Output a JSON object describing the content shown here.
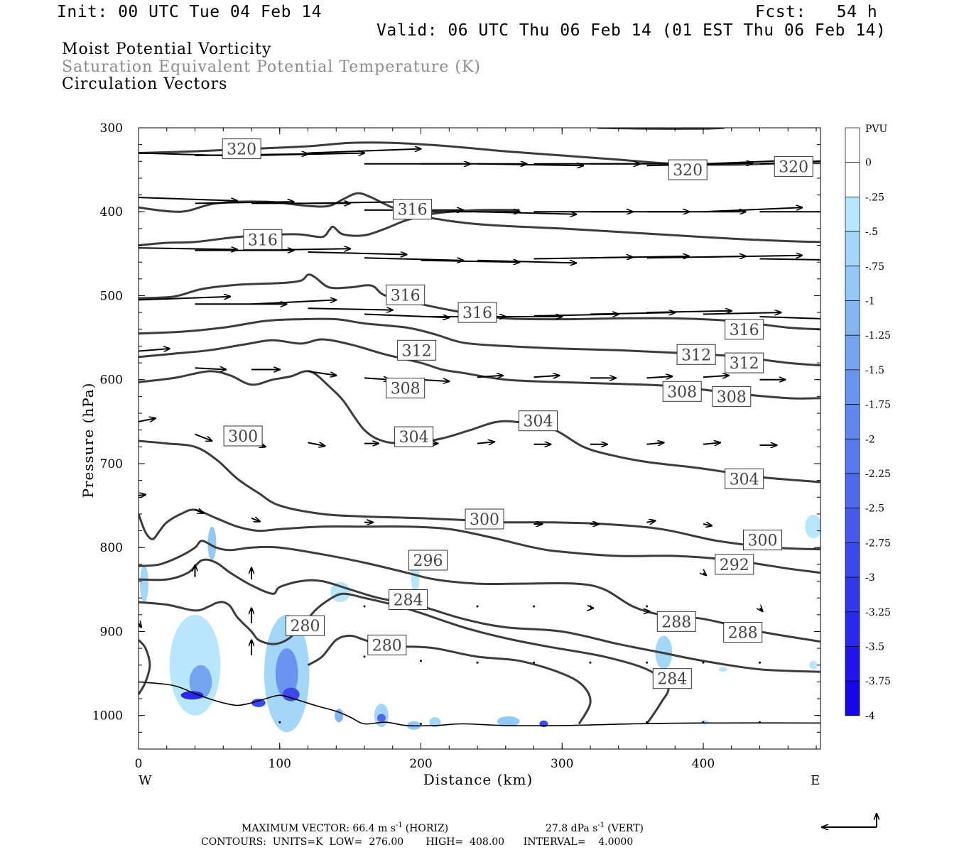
{
  "header": {
    "init": "Init: 00 UTC Tue 04 Feb 14",
    "fcst": "Fcst:   54 h",
    "valid": "Valid: 06 UTC Thu 06 Feb 14 (01 EST Thu 06 Feb 14)",
    "title1": "Moist Potential Vorticity",
    "title2": "Saturation Equivalent Potential Temperature (K)",
    "title3": "Circulation Vectors"
  },
  "colors": {
    "contour": "#3c3c3c",
    "vector": "#000000",
    "title2": "#8c8c8c"
  },
  "chart_data": {
    "type": "cross-section",
    "xlabel": "Distance (km)",
    "ylabel": "Pressure (hPa)",
    "xlim": [
      0,
      483
    ],
    "ylim": [
      1040,
      300
    ],
    "x_ticks": [
      0,
      100,
      200,
      300,
      400
    ],
    "y_ticks": [
      300,
      400,
      500,
      600,
      700,
      800,
      900,
      1000
    ],
    "x_end_labels": {
      "left": "W",
      "right": "E"
    },
    "colorbar": {
      "label": "PVU",
      "ticks": [
        "0",
        "-.25",
        "-.5",
        "-.75",
        "-1",
        "-1.25",
        "-1.5",
        "-1.75",
        "-2",
        "-2.25",
        "-2.5",
        "-2.75",
        "-3",
        "-3.25",
        "-3.5",
        "-3.75",
        "-4"
      ],
      "levels": [
        0,
        -0.25,
        -0.5,
        -0.75,
        -1,
        -1.25,
        -1.5,
        -1.75,
        -2,
        -2.25,
        -2.5,
        -2.75,
        -3,
        -3.25,
        -3.5,
        -3.75,
        -4
      ],
      "colors": [
        "#ffffff",
        "#ffffff",
        "#b8e6fc",
        "#a4d7f7",
        "#93c7f4",
        "#83b5f2",
        "#75a4f0",
        "#6a94ef",
        "#6186ee",
        "#5878ee",
        "#4e69ed",
        "#4559ed",
        "#3b49ec",
        "#3338ec",
        "#2a28ec",
        "#2015eb",
        "#1607eb"
      ]
    },
    "contours": [
      {
        "level": 320,
        "points": [
          [
            0,
            330
          ],
          [
            40,
            328
          ],
          [
            80,
            325
          ],
          [
            120,
            322
          ],
          [
            150,
            318
          ],
          [
            180,
            318
          ],
          [
            220,
            322
          ],
          [
            260,
            328
          ],
          [
            300,
            333
          ],
          [
            340,
            338
          ],
          [
            380,
            343
          ],
          [
            420,
            344
          ],
          [
            460,
            342
          ],
          [
            483,
            342
          ]
        ]
      },
      {
        "level": 320,
        "points": [
          [
            325,
            300
          ],
          [
            360,
            301
          ],
          [
            400,
            301
          ],
          [
            415,
            300
          ]
        ]
      },
      {
        "level": 316,
        "points": [
          [
            0,
            395
          ],
          [
            30,
            400
          ],
          [
            55,
            390
          ],
          [
            90,
            388
          ],
          [
            120,
            393
          ],
          [
            135,
            393
          ],
          [
            145,
            385
          ],
          [
            155,
            378
          ],
          [
            165,
            383
          ],
          [
            180,
            395
          ],
          [
            200,
            405
          ],
          [
            230,
            413
          ],
          [
            260,
            417
          ],
          [
            300,
            420
          ],
          [
            340,
            424
          ],
          [
            380,
            428
          ],
          [
            420,
            432
          ],
          [
            460,
            435
          ],
          [
            483,
            436
          ]
        ]
      },
      {
        "level": 316,
        "points": [
          [
            0,
            440
          ],
          [
            20,
            437
          ],
          [
            40,
            436
          ],
          [
            70,
            430
          ],
          [
            100,
            427
          ],
          [
            115,
            427
          ],
          [
            130,
            430
          ],
          [
            135,
            422
          ],
          [
            138,
            418
          ],
          [
            145,
            427
          ],
          [
            160,
            428
          ],
          [
            175,
            420
          ],
          [
            190,
            410
          ],
          [
            210,
            402
          ],
          [
            240,
            398
          ],
          [
            270,
            398
          ]
        ]
      },
      {
        "level": 316,
        "points": [
          [
            0,
            503
          ],
          [
            25,
            501
          ],
          [
            45,
            492
          ],
          [
            70,
            487
          ],
          [
            100,
            485
          ],
          [
            115,
            482
          ],
          [
            120,
            475
          ],
          [
            125,
            478
          ],
          [
            135,
            490
          ],
          [
            150,
            490
          ],
          [
            165,
            488
          ],
          [
            175,
            500
          ],
          [
            200,
            510
          ],
          [
            230,
            520
          ],
          [
            260,
            527
          ],
          [
            300,
            528
          ],
          [
            340,
            527
          ],
          [
            380,
            527
          ],
          [
            420,
            530
          ],
          [
            460,
            538
          ],
          [
            483,
            540
          ]
        ]
      },
      {
        "level": 312,
        "points": [
          [
            0,
            545
          ],
          [
            30,
            543
          ],
          [
            60,
            538
          ],
          [
            90,
            530
          ],
          [
            115,
            528
          ],
          [
            140,
            528
          ],
          [
            160,
            533
          ],
          [
            190,
            538
          ],
          [
            210,
            546
          ],
          [
            230,
            556
          ],
          [
            260,
            560
          ],
          [
            300,
            563
          ],
          [
            340,
            565
          ],
          [
            380,
            568
          ],
          [
            420,
            572
          ],
          [
            460,
            580
          ],
          [
            483,
            583
          ]
        ]
      },
      {
        "level": 308,
        "points": [
          [
            0,
            573
          ],
          [
            25,
            569
          ],
          [
            50,
            565
          ],
          [
            75,
            558
          ],
          [
            95,
            553
          ],
          [
            115,
            557
          ],
          [
            130,
            552
          ],
          [
            150,
            558
          ],
          [
            175,
            570
          ],
          [
            200,
            580
          ],
          [
            215,
            588
          ],
          [
            230,
            592
          ],
          [
            260,
            600
          ],
          [
            300,
            603
          ],
          [
            340,
            605
          ],
          [
            380,
            608
          ],
          [
            420,
            616
          ],
          [
            460,
            622
          ],
          [
            483,
            622
          ]
        ]
      },
      {
        "level": 304,
        "points": [
          [
            0,
            603
          ],
          [
            25,
            598
          ],
          [
            50,
            590
          ],
          [
            65,
            595
          ],
          [
            80,
            606
          ],
          [
            95,
            600
          ],
          [
            108,
            596
          ],
          [
            118,
            590
          ],
          [
            125,
            593
          ],
          [
            135,
            608
          ],
          [
            145,
            625
          ],
          [
            160,
            660
          ],
          [
            175,
            674
          ],
          [
            195,
            675
          ],
          [
            215,
            670
          ],
          [
            235,
            660
          ],
          [
            255,
            650
          ],
          [
            275,
            652
          ],
          [
            295,
            660
          ],
          [
            315,
            680
          ],
          [
            335,
            690
          ],
          [
            360,
            698
          ],
          [
            400,
            706
          ],
          [
            440,
            716
          ],
          [
            483,
            722
          ]
        ]
      },
      {
        "level": 300,
        "points": [
          [
            0,
            673
          ],
          [
            20,
            676
          ],
          [
            40,
            680
          ],
          [
            55,
            695
          ],
          [
            70,
            718
          ],
          [
            85,
            735
          ],
          [
            100,
            750
          ],
          [
            130,
            760
          ],
          [
            160,
            763
          ],
          [
            200,
            765
          ],
          [
            240,
            768
          ],
          [
            260,
            770
          ],
          [
            290,
            770
          ],
          [
            330,
            772
          ],
          [
            370,
            778
          ],
          [
            410,
            792
          ],
          [
            450,
            800
          ],
          [
            483,
            802
          ]
        ]
      },
      {
        "level": 296,
        "points": [
          [
            0,
            760
          ],
          [
            5,
            782
          ],
          [
            10,
            790
          ],
          [
            15,
            780
          ],
          [
            20,
            770
          ],
          [
            30,
            760
          ],
          [
            40,
            755
          ],
          [
            55,
            765
          ],
          [
            70,
            775
          ],
          [
            85,
            780
          ],
          [
            100,
            778
          ],
          [
            130,
            775
          ],
          [
            160,
            775
          ],
          [
            190,
            775
          ],
          [
            220,
            778
          ],
          [
            250,
            788
          ],
          [
            280,
            800
          ],
          [
            300,
            805
          ],
          [
            340,
            810
          ],
          [
            380,
            810
          ],
          [
            420,
            815
          ],
          [
            460,
            825
          ],
          [
            483,
            830
          ]
        ]
      },
      {
        "level": 292,
        "points": [
          [
            0,
            822
          ],
          [
            15,
            820
          ],
          [
            30,
            810
          ],
          [
            40,
            800
          ],
          [
            45,
            792
          ],
          [
            55,
            800
          ],
          [
            65,
            803
          ],
          [
            80,
            800
          ],
          [
            100,
            800
          ],
          [
            130,
            808
          ],
          [
            160,
            818
          ],
          [
            190,
            830
          ],
          [
            210,
            838
          ],
          [
            240,
            843
          ],
          [
            270,
            843
          ],
          [
            310,
            843
          ],
          [
            330,
            850
          ],
          [
            350,
            870
          ],
          [
            370,
            880
          ],
          [
            400,
            885
          ],
          [
            440,
            900
          ],
          [
            483,
            912
          ]
        ]
      },
      {
        "level": 288,
        "points": [
          [
            0,
            838
          ],
          [
            20,
            838
          ],
          [
            35,
            830
          ],
          [
            45,
            815
          ],
          [
            55,
            818
          ],
          [
            65,
            830
          ],
          [
            80,
            845
          ],
          [
            95,
            855
          ],
          [
            100,
            847
          ],
          [
            115,
            840
          ],
          [
            130,
            840
          ],
          [
            150,
            850
          ],
          [
            170,
            860
          ],
          [
            200,
            870
          ],
          [
            230,
            885
          ],
          [
            260,
            895
          ],
          [
            300,
            900
          ],
          [
            340,
            915
          ],
          [
            370,
            925
          ],
          [
            400,
            935
          ],
          [
            440,
            945
          ],
          [
            483,
            948
          ]
        ]
      },
      {
        "level": 284,
        "points": [
          [
            0,
            865
          ],
          [
            20,
            868
          ],
          [
            40,
            875
          ],
          [
            50,
            870
          ],
          [
            55,
            866
          ],
          [
            60,
            865
          ],
          [
            65,
            870
          ],
          [
            70,
            883
          ],
          [
            80,
            900
          ],
          [
            85,
            910
          ],
          [
            95,
            915
          ],
          [
            105,
            910
          ],
          [
            115,
            895
          ],
          [
            125,
            875
          ],
          [
            135,
            862
          ],
          [
            145,
            855
          ],
          [
            160,
            860
          ],
          [
            180,
            868
          ],
          [
            200,
            878
          ],
          [
            230,
            895
          ],
          [
            260,
            908
          ],
          [
            290,
            918
          ],
          [
            330,
            930
          ],
          [
            360,
            945
          ],
          [
            375,
            965
          ],
          [
            370,
            985
          ],
          [
            360,
            1010
          ]
        ]
      },
      {
        "level": 280,
        "points": [
          [
            0,
            910
          ],
          [
            5,
            920
          ],
          [
            8,
            940
          ],
          [
            5,
            960
          ],
          [
            0,
            975
          ]
        ]
      },
      {
        "level": 280,
        "points": [
          [
            120,
            940
          ],
          [
            130,
            930
          ],
          [
            140,
            910
          ],
          [
            150,
            905
          ],
          [
            160,
            910
          ],
          [
            175,
            918
          ],
          [
            190,
            918
          ],
          [
            210,
            920
          ],
          [
            240,
            930
          ],
          [
            270,
            935
          ],
          [
            300,
            950
          ],
          [
            315,
            965
          ],
          [
            320,
            985
          ],
          [
            312,
            1010
          ]
        ]
      }
    ],
    "vectors_note": "Circulation vectors (horizontal + vertical components)",
    "max_vector_label": "MAXIMUM VECTOR:  66.4 m s",
    "max_vector_horiz": "(HORIZ)",
    "max_vector_vert": "27.8 dPa s",
    "max_vector_vert_unit": "(VERT)",
    "exp_neg1": "-1",
    "contours_info": "CONTOURS:  UNITS=K  LOW=  276.00       HIGH=  408.00      INTERVAL=    4.0000"
  }
}
